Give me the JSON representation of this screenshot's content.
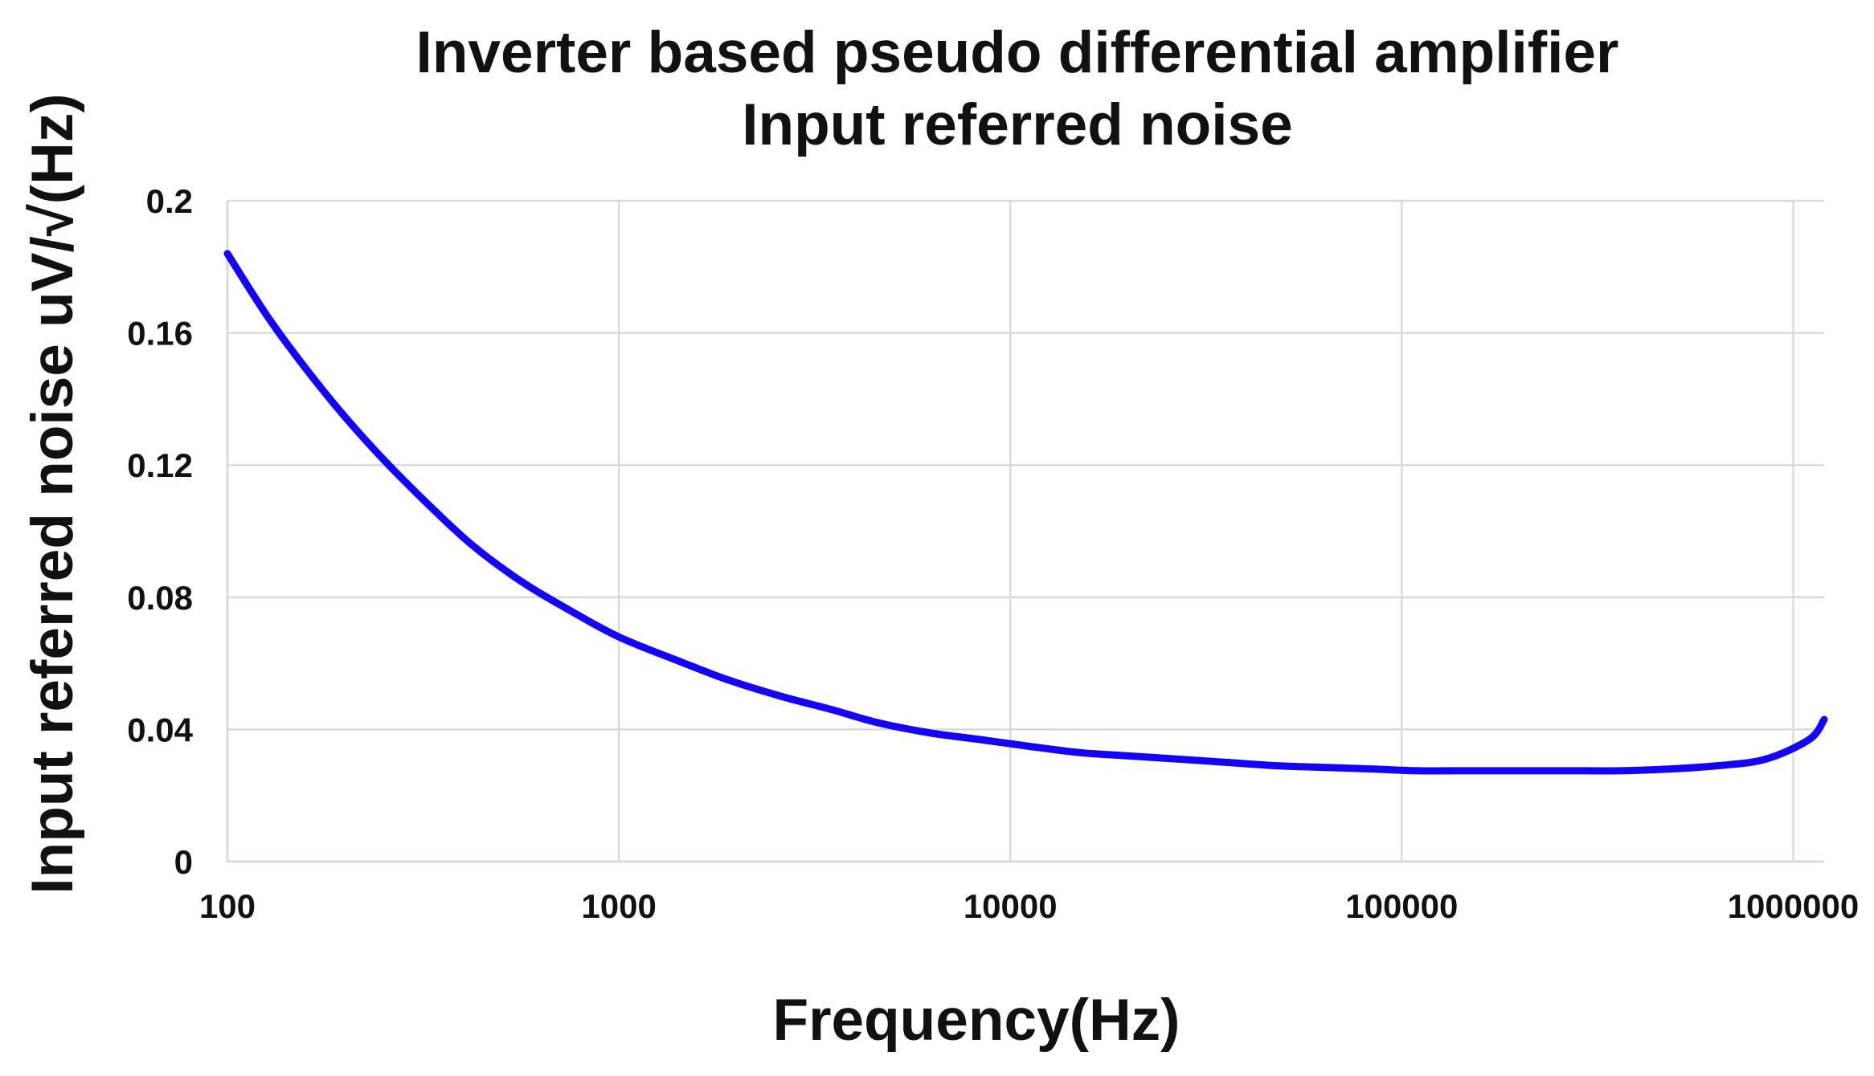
{
  "chart_data": {
    "type": "line",
    "title": "Inverter based pseudo differential amplifier",
    "subtitle": "Input referred noise",
    "xlabel": "Frequency(Hz)",
    "ylabel": "Input referred noise uV/√(Hz)",
    "x_scale": "log",
    "xlim": [
      100,
      1200000
    ],
    "ylim": [
      0,
      0.2
    ],
    "x_ticks": [
      100,
      1000,
      10000,
      100000,
      1000000
    ],
    "x_tick_labels": [
      "100",
      "1000",
      "10000",
      "100000",
      "1000000"
    ],
    "y_ticks": [
      0,
      0.04,
      0.08,
      0.12,
      0.16,
      0.2
    ],
    "y_tick_labels": [
      "0",
      "0.04",
      "0.08",
      "0.12",
      "0.16",
      "0.2"
    ],
    "grid": true,
    "legend": "none",
    "series": [
      {
        "color": "#1400ff",
        "x": [
          100,
          130,
          180,
          240,
          320,
          420,
          560,
          750,
          1000,
          1400,
          1900,
          2600,
          3500,
          4600,
          6200,
          8300,
          11000,
          15000,
          20000,
          27000,
          36000,
          48000,
          64000,
          85000,
          110000,
          150000,
          200000,
          270000,
          360000,
          480000,
          640000,
          850000,
          1100000,
          1200000
        ],
        "y": [
          0.184,
          0.163,
          0.141,
          0.124,
          0.109,
          0.096,
          0.085,
          0.076,
          0.068,
          0.061,
          0.055,
          0.05,
          0.046,
          0.042,
          0.039,
          0.037,
          0.035,
          0.033,
          0.032,
          0.031,
          0.03,
          0.029,
          0.0285,
          0.028,
          0.0275,
          0.0275,
          0.0275,
          0.0275,
          0.0275,
          0.028,
          0.029,
          0.031,
          0.037,
          0.043
        ]
      }
    ]
  }
}
